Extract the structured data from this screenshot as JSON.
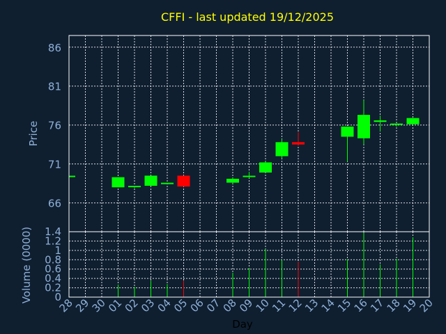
{
  "title": "CFFI - last updated 19/12/2025",
  "chart_data": [
    {
      "type": "candlestick",
      "ylabel": "Price",
      "ylim": [
        62.3,
        87.5
      ],
      "yticks": [
        66,
        71,
        76,
        81,
        86
      ],
      "grid": true,
      "colors": {
        "up": "#00ff00",
        "down": "#ff0000",
        "background": "#0f1f30",
        "grid": "#ffffff",
        "text": "#8fb0d8",
        "title": "#ffff00"
      },
      "candles": [
        {
          "day": "28",
          "open": 69.4,
          "high": 69.4,
          "low": 69.4,
          "close": 69.4
        },
        {
          "day": "01",
          "open": 68.0,
          "high": 69.3,
          "low": 68.0,
          "close": 69.3
        },
        {
          "day": "02",
          "open": 68.0,
          "high": 68.2,
          "low": 67.9,
          "close": 68.1
        },
        {
          "day": "03",
          "open": 68.2,
          "high": 69.5,
          "low": 68.2,
          "close": 69.5
        },
        {
          "day": "04",
          "open": 68.4,
          "high": 68.5,
          "low": 68.4,
          "close": 68.5
        },
        {
          "day": "05",
          "open": 69.5,
          "high": 69.5,
          "low": 68.1,
          "close": 68.1
        },
        {
          "day": "08",
          "open": 68.6,
          "high": 69.2,
          "low": 68.5,
          "close": 69.1
        },
        {
          "day": "09",
          "open": 69.3,
          "high": 70.0,
          "low": 69.2,
          "close": 69.4
        },
        {
          "day": "10",
          "open": 69.9,
          "high": 71.3,
          "low": 69.9,
          "close": 71.2
        },
        {
          "day": "11",
          "open": 72.0,
          "high": 74.2,
          "low": 71.7,
          "close": 73.8
        },
        {
          "day": "12",
          "open": 73.8,
          "high": 75.1,
          "low": 73.4,
          "close": 73.5
        },
        {
          "day": "15",
          "open": 74.5,
          "high": 75.8,
          "low": 71.3,
          "close": 75.8
        },
        {
          "day": "16",
          "open": 74.3,
          "high": 79.2,
          "low": 73.5,
          "close": 77.3
        },
        {
          "day": "17",
          "open": 76.4,
          "high": 77.2,
          "low": 75.2,
          "close": 76.6
        },
        {
          "day": "18",
          "open": 76.0,
          "high": 76.2,
          "low": 75.8,
          "close": 76.1
        },
        {
          "day": "19",
          "open": 76.1,
          "high": 76.9,
          "low": 76.0,
          "close": 76.9
        }
      ]
    },
    {
      "type": "bar",
      "ylabel": "Volume (0000)",
      "xlabel": "Day",
      "ylim": [
        0,
        1.4
      ],
      "yticks": [
        "0",
        "0.2",
        "0.4",
        "0.6",
        "0.8",
        "1",
        "1.2",
        "1.4"
      ],
      "grid": true,
      "categories": [
        "28",
        "29",
        "30",
        "01",
        "02",
        "03",
        "04",
        "05",
        "06",
        "07",
        "08",
        "09",
        "10",
        "11",
        "12",
        "13",
        "14",
        "15",
        "16",
        "17",
        "18",
        "19",
        "20"
      ],
      "bars": [
        {
          "day": "01",
          "value": 0.27,
          "direction": "up"
        },
        {
          "day": "02",
          "value": 0.22,
          "direction": "up"
        },
        {
          "day": "03",
          "value": 0.35,
          "direction": "up"
        },
        {
          "day": "04",
          "value": 0.28,
          "direction": "up"
        },
        {
          "day": "05",
          "value": 0.35,
          "direction": "down"
        },
        {
          "day": "08",
          "value": 0.52,
          "direction": "up"
        },
        {
          "day": "09",
          "value": 0.62,
          "direction": "up"
        },
        {
          "day": "10",
          "value": 1.03,
          "direction": "up"
        },
        {
          "day": "11",
          "value": 0.8,
          "direction": "up"
        },
        {
          "day": "12",
          "value": 0.76,
          "direction": "down"
        },
        {
          "day": "15",
          "value": 0.81,
          "direction": "up"
        },
        {
          "day": "16",
          "value": 1.38,
          "direction": "up"
        },
        {
          "day": "17",
          "value": 0.7,
          "direction": "up"
        },
        {
          "day": "18",
          "value": 0.82,
          "direction": "up"
        },
        {
          "day": "19",
          "value": 1.28,
          "direction": "up"
        }
      ]
    }
  ]
}
